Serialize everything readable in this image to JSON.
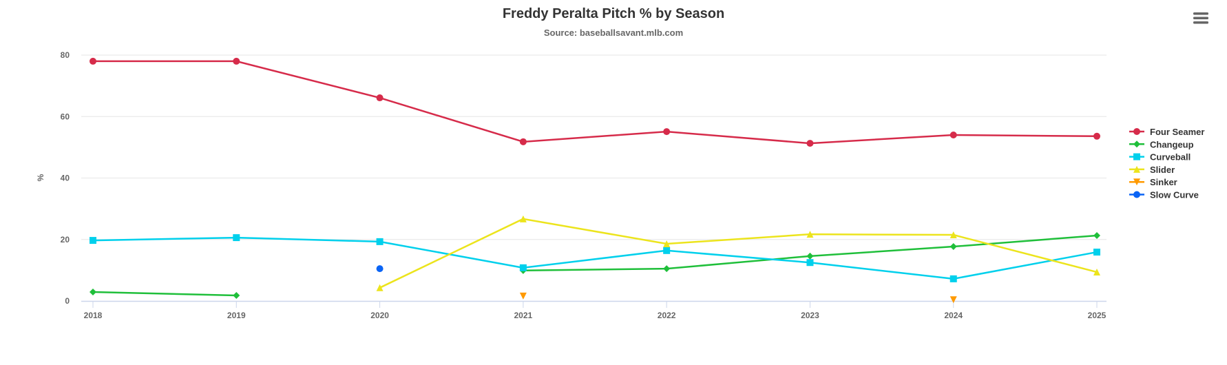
{
  "chart_data": {
    "type": "line",
    "title": "Freddy Peralta Pitch % by Season",
    "subtitle": "Source: baseballsavant.mlb.com",
    "xlabel": "",
    "ylabel": "%",
    "categories": [
      "2018",
      "2019",
      "2020",
      "2021",
      "2022",
      "2023",
      "2024",
      "2025"
    ],
    "yticks": [
      0,
      20,
      40,
      60,
      80
    ],
    "ylim": [
      0,
      80
    ],
    "grid": true,
    "legend": "right",
    "series": [
      {
        "name": "Four Seamer",
        "color": "#d62b4a",
        "marker": "circle",
        "values": [
          78.0,
          78.0,
          66.1,
          51.8,
          55.1,
          51.3,
          54.0,
          53.6
        ]
      },
      {
        "name": "Changeup",
        "color": "#1fbf3a",
        "marker": "diamond",
        "values": [
          2.9,
          1.8,
          null,
          9.9,
          10.5,
          14.6,
          17.7,
          21.3
        ]
      },
      {
        "name": "Curveball",
        "color": "#00d0ec",
        "marker": "square",
        "values": [
          19.7,
          20.6,
          19.3,
          10.8,
          16.4,
          12.5,
          7.2,
          15.9
        ]
      },
      {
        "name": "Slider",
        "color": "#ece41c",
        "marker": "triangle",
        "values": [
          null,
          null,
          4.3,
          26.7,
          18.6,
          21.7,
          21.5,
          9.4
        ]
      },
      {
        "name": "Sinker",
        "color": "#ff9a00",
        "marker": "triangle-down",
        "values": [
          null,
          null,
          null,
          1.6,
          null,
          null,
          0.4,
          null
        ]
      },
      {
        "name": "Slow Curve",
        "color": "#0a64f5",
        "marker": "circle",
        "values": [
          null,
          null,
          10.5,
          null,
          null,
          null,
          null,
          null
        ]
      }
    ]
  },
  "menu": {
    "icon": "hamburger-menu-icon"
  }
}
